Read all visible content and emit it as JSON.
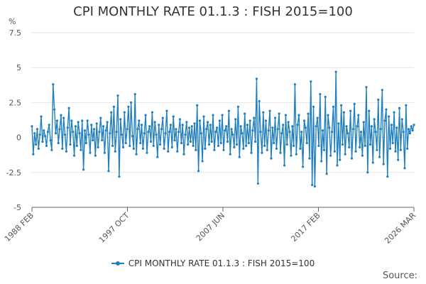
{
  "colors": {
    "series": "#1f7fbf",
    "grid": "#e6e6e6",
    "axis": "#666666"
  },
  "chart_data": {
    "type": "line",
    "title": "CPI MONTHLY RATE 01.1.3 : FISH 2015=100",
    "ylabel": "%",
    "xlabel": "",
    "ylim": [
      -5,
      7.5
    ],
    "yticks": [
      -5,
      -2.5,
      0,
      2.5,
      5,
      7.5
    ],
    "ytick_labels": [
      "-5",
      "-2.5",
      "0",
      "2.5",
      "5",
      "7.5"
    ],
    "xticks": [
      {
        "label": "1988 FEB"
      },
      {
        "label": "1997 OCT"
      },
      {
        "label": "2007 JUN"
      },
      {
        "label": "2017 FEB"
      },
      {
        "label": "2026 MAR"
      }
    ],
    "grid": true,
    "legend_position": "bottom",
    "series": [
      {
        "name": "CPI MONTHLY RATE 01.1.3 : FISH 2015=100",
        "values": [
          0.8,
          -1.2,
          0.3,
          -0.5,
          0.6,
          -0.8,
          0.2,
          1.5,
          -0.3,
          0.5,
          0.1,
          -0.6,
          0.4,
          0.9,
          -0.2,
          -0.9,
          3.8,
          2.0,
          0.3,
          1.2,
          -0.4,
          0.6,
          1.6,
          -0.8,
          1.4,
          0.2,
          -1.0,
          0.7,
          2.1,
          -0.5,
          1.2,
          0.4,
          -1.3,
          0.8,
          -0.6,
          1.1,
          0.3,
          -0.9,
          1.2,
          -2.3,
          0.5,
          -0.4,
          1.2,
          0.2,
          -1.1,
          0.9,
          -0.2,
          0.6,
          -1.3,
          1.0,
          -0.7,
          0.4,
          1.4,
          -0.2,
          0.8,
          -1.1,
          0.5,
          1.1,
          -2.4,
          0.3,
          1.8,
          -0.6,
          2.2,
          -1.0,
          0.4,
          3.0,
          -2.8,
          1.3,
          0.2,
          -0.7,
          1.8,
          -0.4,
          0.6,
          2.2,
          -0.6,
          2.5,
          0.1,
          -0.8,
          3.1,
          -1.2,
          0.6,
          1.2,
          -0.4,
          0.9,
          -0.8,
          0.3,
          1.6,
          -1.1,
          0.4,
          0.8,
          -0.3,
          1.8,
          -0.6,
          1.1,
          0.2,
          -1.4,
          0.9,
          -0.5,
          0.6,
          1.4,
          -0.8,
          0.3,
          1.9,
          -1.0,
          0.4,
          0.9,
          -0.7,
          1.5,
          -0.2,
          0.6,
          -1.0,
          0.4,
          1.3,
          -0.4,
          0.9,
          -1.2,
          0.2,
          1.1,
          -0.5,
          0.7,
          -0.3,
          0.8,
          -0.6,
          1.0,
          -0.9,
          2.3,
          -2.4,
          1.2,
          0.3,
          -1.7,
          1.5,
          -0.8,
          0.6,
          1.1,
          -0.5,
          0.9,
          -0.3,
          1.6,
          -0.9,
          0.4,
          0.7,
          -0.6,
          1.2,
          -0.4,
          1.6,
          -0.9,
          0.5,
          0.8,
          -0.3,
          1.9,
          -1.2,
          0.6,
          0.2,
          -0.7,
          1.3,
          -0.5,
          2.2,
          -1.4,
          0.8,
          0.3,
          -0.8,
          1.7,
          -0.6,
          0.9,
          -0.4,
          1.2,
          -1.1,
          0.5,
          1.4,
          -0.3,
          4.2,
          -3.3,
          2.6,
          0.4,
          -1.1,
          1.8,
          -0.6,
          1.2,
          -0.9,
          0.5,
          1.9,
          -1.5,
          0.7,
          -0.4,
          1.4,
          -0.8,
          0.6,
          1.7,
          -1.1,
          0.3,
          0.9,
          -2.0,
          1.6,
          -0.5,
          1.1,
          0.4,
          -1.3,
          0.8,
          -0.6,
          3.8,
          -1.2,
          0.9,
          1.6,
          -0.8,
          0.4,
          -2.1,
          1.2,
          0.7,
          -0.4,
          1.7,
          -1.5,
          4.0,
          -3.4,
          2.2,
          -3.5,
          0.8,
          1.4,
          -0.6,
          3.1,
          -1.7,
          0.5,
          -0.9,
          2.9,
          -2.6,
          1.6,
          0.7,
          -1.3,
          0.4,
          2.2,
          -1.0,
          4.7,
          -2.0,
          1.0,
          -1.6,
          2.3,
          -0.5,
          1.8,
          -1.2,
          0.8,
          0.3,
          -0.7,
          1.9,
          -1.5,
          0.6,
          2.4,
          -1.0,
          0.8,
          1.6,
          -0.7,
          0.4,
          -1.3,
          1.1,
          -0.6,
          3.6,
          -2.5,
          1.9,
          -0.5,
          0.8,
          -1.8,
          1.3,
          0.4,
          -0.9,
          2.7,
          -1.4,
          0.6,
          3.4,
          -1.9,
          1.2,
          2.0,
          -2.8,
          1.5,
          -0.8,
          0.9,
          -0.4,
          1.8,
          -1.0,
          0.7,
          -1.6,
          2.1,
          -0.9,
          1.3,
          0.4,
          -2.2,
          2.3,
          -0.8,
          0.6,
          0.3,
          0.8,
          0.5,
          0.9
        ]
      }
    ]
  },
  "legend": {
    "label": "CPI MONTHLY RATE 01.1.3 : FISH 2015=100"
  },
  "source": {
    "label": "Source:"
  }
}
